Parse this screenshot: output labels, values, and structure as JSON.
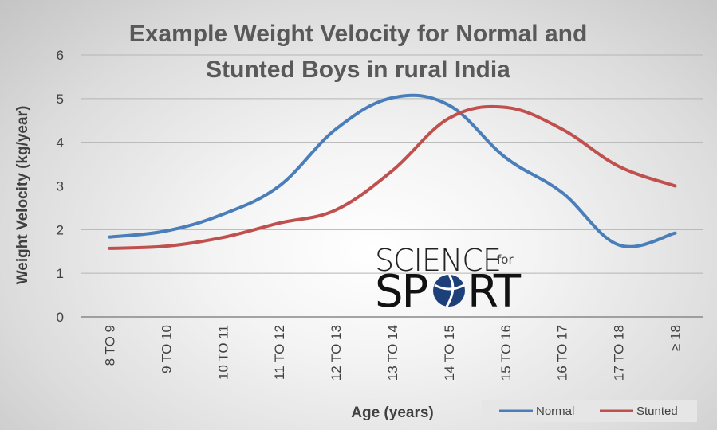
{
  "chart_data": {
    "type": "line",
    "title": [
      "Example Weight Velocity for Normal and",
      "Stunted Boys in rural India"
    ],
    "xlabel": "Age (years)",
    "ylabel": "Weight Velocity (kg/year)",
    "categories": [
      "8 TO 9",
      "9 TO 10",
      "10 TO 11",
      "11 TO 12",
      "12 TO 13",
      "13 TO 14",
      "14 TO 15",
      "15 TO 16",
      "16 TO 17",
      "17 TO 18",
      "≥ 18"
    ],
    "ylim": [
      0,
      6
    ],
    "yticks": [
      "0",
      "1",
      "2",
      "3",
      "4",
      "5",
      "6"
    ],
    "grid": true,
    "smooth": true,
    "legend_position": "bottom-right",
    "series": [
      {
        "name": "Normal",
        "color": "#4a7ebb",
        "values": [
          1.83,
          1.97,
          2.35,
          3.0,
          4.3,
          5.02,
          4.85,
          3.65,
          2.85,
          1.65,
          1.92
        ]
      },
      {
        "name": "Stunted",
        "color": "#c0504d",
        "values": [
          1.57,
          1.62,
          1.82,
          2.15,
          2.45,
          3.35,
          4.55,
          4.8,
          4.3,
          3.45,
          3.0
        ]
      }
    ]
  },
  "logo": {
    "line1": "SCIENCE",
    "small": "for",
    "line2a": "SP",
    "line2b": "RT"
  }
}
